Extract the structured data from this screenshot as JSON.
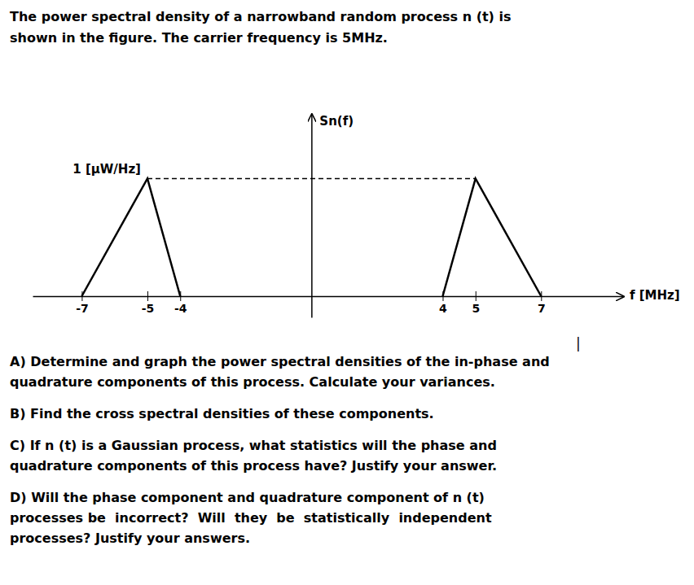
{
  "chart_data": {
    "type": "line",
    "title": "The power spectral density of a narrowband random process n (t) is\nshown in the figure. The carrier frequency is 5MHz.",
    "x_label": "f [MHz]",
    "y_label": "Sn(f)",
    "series": [
      {
        "x": [
          -7,
          -5,
          -4
        ],
        "values": [
          0,
          1,
          0
        ],
        "color": "#000000",
        "line_style": "solid"
      },
      {
        "x": [
          4,
          5,
          7
        ],
        "values": [
          0,
          1,
          0
        ],
        "color": "#000000",
        "line_style": "solid"
      },
      {
        "x": [
          -5,
          5
        ],
        "values": [
          1.0,
          1.0
        ],
        "color": "#000000",
        "line_style": "dashed"
      }
    ],
    "xlim": [
      -8.5,
      9.5
    ],
    "xticks": [
      -7,
      -5,
      -4,
      4,
      5,
      7
    ],
    "ylim": [
      -0.18,
      1.55
    ],
    "tick_labels": "x",
    "grid": false,
    "annotations": [
      "1 [μW/Hz]",
      "|",
      "A) Determine and graph the power spectral densities of the in-phase and\nquadrature components of this process. Calculate your variances.",
      "B) Find the cross spectral densities of these components.",
      "C) If n (t) is a Gaussian process, what statistics will the phase and\nquadrature components of this process have? Justify your answer.",
      "D) Will the phase component and quadrature component of n (t)\nprocesses be  incorrect?  Will  they  be  statistically  independent\nprocesses? Justify your answers."
    ]
  }
}
